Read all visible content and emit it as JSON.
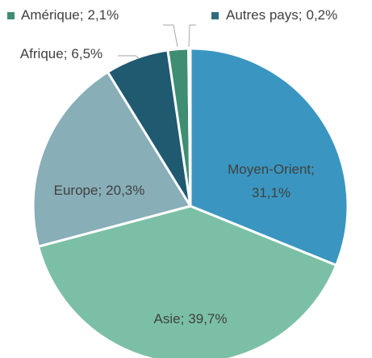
{
  "chart_data": {
    "type": "pie",
    "categories": [
      "Moyen-Orient;",
      "Asie;",
      "Europe;",
      "Afrique;",
      "Amérique;",
      "Autres pays;"
    ],
    "values": [
      31.1,
      39.7,
      20.3,
      6.5,
      2.1,
      0.2
    ],
    "value_labels": [
      "31,1%",
      "39,7%",
      "20,3%",
      "6,5%",
      "2,1%",
      "0,2%"
    ],
    "colors": [
      "#3a96c0",
      "#7bc0a6",
      "#88aeb7",
      "#1f5a70",
      "#3f8d72",
      "#2f6b80"
    ]
  }
}
